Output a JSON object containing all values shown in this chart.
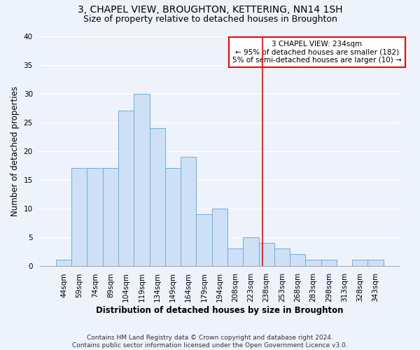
{
  "title": "3, CHAPEL VIEW, BROUGHTON, KETTERING, NN14 1SH",
  "subtitle": "Size of property relative to detached houses in Broughton",
  "xlabel": "Distribution of detached houses by size in Broughton",
  "ylabel": "Number of detached properties",
  "footnote": "Contains HM Land Registry data © Crown copyright and database right 2024.\nContains public sector information licensed under the Open Government Licence v3.0.",
  "bar_labels": [
    "44sqm",
    "59sqm",
    "74sqm",
    "89sqm",
    "104sqm",
    "119sqm",
    "134sqm",
    "149sqm",
    "164sqm",
    "179sqm",
    "194sqm",
    "208sqm",
    "223sqm",
    "238sqm",
    "253sqm",
    "268sqm",
    "283sqm",
    "298sqm",
    "313sqm",
    "328sqm",
    "343sqm"
  ],
  "bar_values": [
    1,
    17,
    17,
    17,
    27,
    30,
    24,
    17,
    19,
    9,
    10,
    3,
    5,
    4,
    3,
    2,
    1,
    1,
    0,
    1,
    1
  ],
  "bar_color": "#cde0f5",
  "bar_edge_color": "#6aaee0",
  "annotation_line_color": "red",
  "annotation_text_line1": "3 CHAPEL VIEW: 234sqm",
  "annotation_text_line2": "← 95% of detached houses are smaller (182)",
  "annotation_text_line3": "5% of semi-detached houses are larger (10) →",
  "ylim": [
    0,
    40
  ],
  "yticks": [
    0,
    5,
    10,
    15,
    20,
    25,
    30,
    35,
    40
  ],
  "background_color": "#eef3fb",
  "grid_color": "#ffffff",
  "title_fontsize": 10,
  "subtitle_fontsize": 9,
  "axis_label_fontsize": 8.5,
  "tick_fontsize": 7.5,
  "annotation_fontsize": 7.5,
  "footnote_fontsize": 6.5
}
